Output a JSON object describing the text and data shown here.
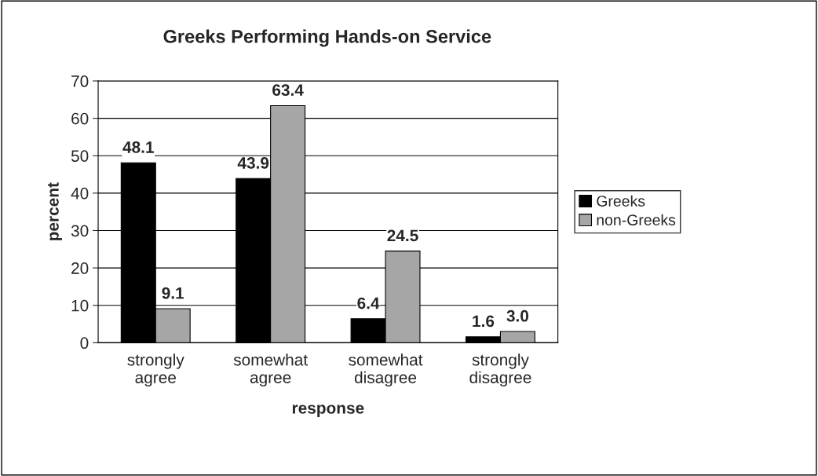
{
  "chart_data": {
    "type": "bar",
    "title": "Greeks Performing Hands-on Service",
    "xlabel": "response",
    "ylabel": "percent",
    "categories": [
      "strongly\nagree",
      "somewhat\nagree",
      "somewhat\ndisagree",
      "strongly\ndisagree"
    ],
    "series": [
      {
        "name": "Greeks",
        "color": "#000000",
        "values": [
          48.1,
          43.9,
          6.4,
          1.6
        ],
        "value_labels": [
          "48.1",
          "43.9",
          "6.4",
          "1.6"
        ]
      },
      {
        "name": "non-Greeks",
        "color": "#a6a6a6",
        "values": [
          9.1,
          63.4,
          24.5,
          3.0
        ],
        "value_labels": [
          "9.1",
          "63.4",
          "24.5",
          "3.0"
        ]
      }
    ],
    "ylim": [
      0,
      70
    ],
    "yticks": [
      0,
      10,
      20,
      30,
      40,
      50,
      60,
      70
    ],
    "grid": "y",
    "legend": "right"
  }
}
